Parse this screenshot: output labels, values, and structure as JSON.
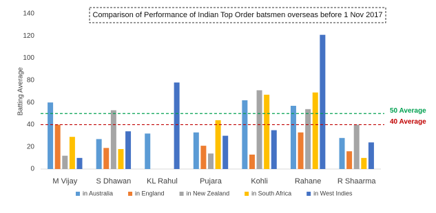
{
  "chart_data": {
    "type": "bar",
    "title": "Comparison of Performance of Indian Top Order batsmen overseas before 1 Nov 2017",
    "y_label": "Batting Average",
    "categories": [
      "M Vijay",
      "S Dhawan",
      "KL Rahul",
      "Pujara",
      "Kohli",
      "Rahane",
      "R Shaarma"
    ],
    "series": [
      {
        "name": "in Australia",
        "color": "#5b9bd5",
        "values": [
          60,
          27,
          32,
          33,
          62,
          57,
          28
        ]
      },
      {
        "name": "in England",
        "color": "#ed7d31",
        "values": [
          40,
          19,
          null,
          21,
          13,
          33,
          16
        ]
      },
      {
        "name": "in New Zealand",
        "color": "#a5a5a5",
        "values": [
          12,
          53,
          null,
          14,
          71,
          54,
          40
        ]
      },
      {
        "name": "in South Africa",
        "color": "#ffc000",
        "values": [
          29,
          18,
          null,
          44,
          67,
          69,
          10
        ]
      },
      {
        "name": "in West Indies",
        "color": "#4472c4",
        "values": [
          10,
          34,
          78,
          30,
          35,
          121,
          24
        ]
      }
    ],
    "reference_lines": [
      {
        "value": 50,
        "label": "50 Average",
        "color": "#00a050"
      },
      {
        "value": 40,
        "label": "40 Average",
        "color": "#c00000"
      }
    ],
    "ylim": [
      0,
      140
    ],
    "yticks": [
      0,
      20,
      40,
      60,
      80,
      100,
      120,
      140
    ],
    "grid": false,
    "legend": "bottom"
  }
}
